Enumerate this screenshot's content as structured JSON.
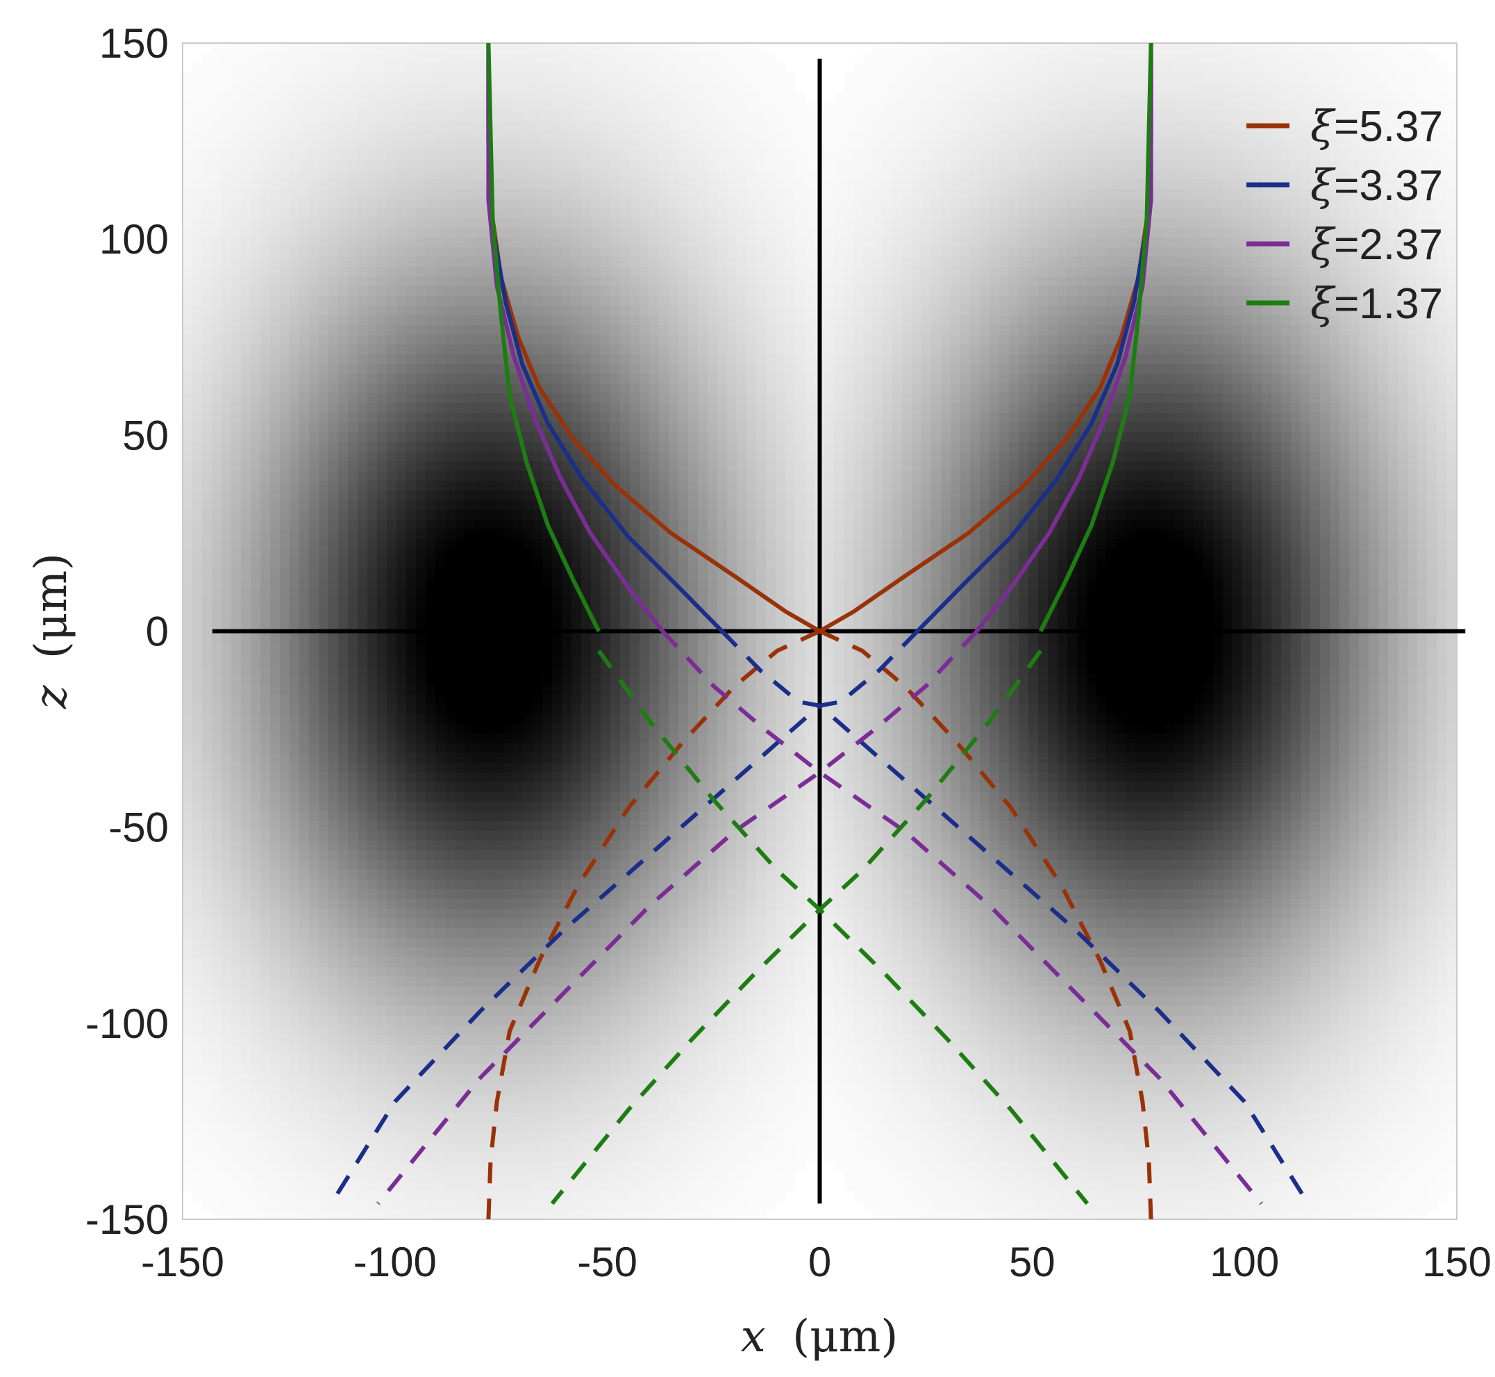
{
  "chart_data": {
    "type": "line",
    "title": "",
    "xlabel_var": "x",
    "xlabel_unit": "(μm)",
    "ylabel_var": "z",
    "ylabel_unit": "(μm)",
    "xlim": [
      -150,
      150
    ],
    "ylim": [
      -150,
      150
    ],
    "xticks": [
      -150,
      -100,
      -50,
      0,
      50,
      100,
      150
    ],
    "yticks": [
      150,
      100,
      50,
      0,
      -50,
      -100,
      -150
    ],
    "grid": false,
    "legend_position": "top-right",
    "background": {
      "type": "heatmap",
      "description_free": true,
      "minima_x": [
        -78,
        78
      ],
      "minima_z": 0,
      "colormap": "gray"
    },
    "reference_lines": [
      {
        "orientation": "vertical",
        "x": 0,
        "from": -146,
        "to": 146,
        "color": "#000000"
      },
      {
        "orientation": "horizontal",
        "z": 0,
        "from": -143,
        "to": 152,
        "color": "#000000"
      }
    ],
    "series": [
      {
        "name": "ξ=5.37",
        "color": "#9a3208",
        "solid": [
          [
            0,
            0
          ],
          [
            8,
            5
          ],
          [
            20,
            14
          ],
          [
            35,
            25
          ],
          [
            48,
            37
          ],
          [
            58,
            49
          ],
          [
            66,
            62
          ],
          [
            71,
            75
          ],
          [
            75,
            90
          ],
          [
            77,
            105
          ],
          [
            78,
            125
          ],
          [
            78,
            150
          ]
        ],
        "dashed": [
          [
            0,
            0
          ],
          [
            10,
            -5
          ],
          [
            20,
            -14
          ],
          [
            32,
            -28
          ],
          [
            45,
            -45
          ],
          [
            57,
            -65
          ],
          [
            66,
            -84
          ],
          [
            73,
            -102
          ],
          [
            76,
            -120
          ],
          [
            77.5,
            -135
          ],
          [
            78,
            -150
          ]
        ]
      },
      {
        "name": "ξ=3.37",
        "color": "#1a2e8a",
        "solid": [
          [
            23,
            0
          ],
          [
            33,
            11
          ],
          [
            45,
            24
          ],
          [
            56,
            39
          ],
          [
            64,
            53
          ],
          [
            70,
            68
          ],
          [
            74,
            84
          ],
          [
            77,
            103
          ],
          [
            78,
            125
          ],
          [
            78,
            150
          ]
        ],
        "dashed": [
          [
            23,
            0
          ],
          [
            14,
            -10
          ],
          [
            5,
            -18
          ],
          [
            0,
            -19
          ],
          [
            20,
            -38
          ],
          [
            40,
            -57
          ],
          [
            60,
            -76
          ],
          [
            80,
            -97
          ],
          [
            100,
            -120
          ],
          [
            115,
            -146
          ]
        ]
      },
      {
        "name": "ξ=2.37",
        "color": "#7b2d96",
        "solid": [
          [
            37,
            0
          ],
          [
            45,
            11
          ],
          [
            54,
            25
          ],
          [
            61,
            39
          ],
          [
            67,
            54
          ],
          [
            72,
            70
          ],
          [
            76,
            88
          ],
          [
            78,
            110
          ],
          [
            78,
            150
          ]
        ],
        "dashed": [
          [
            37,
            0
          ],
          [
            25,
            -14
          ],
          [
            13,
            -25
          ],
          [
            0,
            -36
          ],
          [
            20,
            -51
          ],
          [
            40,
            -70
          ],
          [
            60,
            -92
          ],
          [
            80,
            -114
          ],
          [
            104,
            -146
          ]
        ]
      },
      {
        "name": "ξ=1.37",
        "color": "#1e7d12",
        "solid": [
          [
            52,
            0
          ],
          [
            58,
            13
          ],
          [
            64,
            27
          ],
          [
            69,
            43
          ],
          [
            73,
            60
          ],
          [
            75,
            80
          ],
          [
            77,
            105
          ],
          [
            78,
            150
          ]
        ],
        "dashed": [
          [
            52,
            -5
          ],
          [
            40,
            -23
          ],
          [
            25,
            -43
          ],
          [
            10,
            -61
          ],
          [
            0,
            -71
          ],
          [
            15,
            -87
          ],
          [
            30,
            -104
          ],
          [
            45,
            -122
          ],
          [
            63,
            -146
          ]
        ]
      }
    ]
  }
}
